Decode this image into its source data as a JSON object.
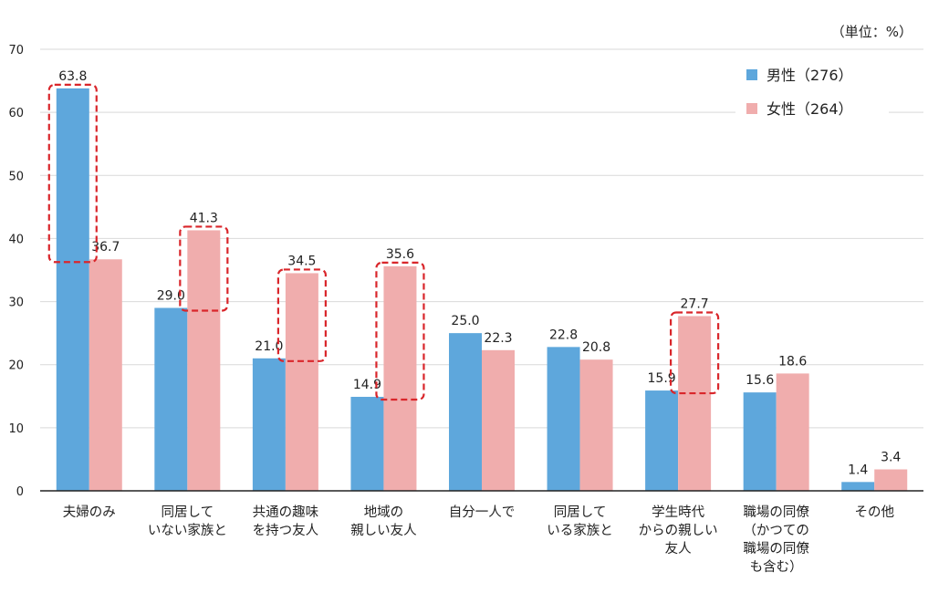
{
  "chart_data": {
    "type": "bar",
    "unit_label": "（単位：%）",
    "categories": [
      [
        "夫婦のみ"
      ],
      [
        "同居して",
        "いない家族と"
      ],
      [
        "共通の趣味",
        "を持つ友人"
      ],
      [
        "地域の",
        "親しい友人"
      ],
      [
        "自分一人で"
      ],
      [
        "同居して",
        "いる家族と"
      ],
      [
        "学生時代",
        "からの親しい",
        "友人"
      ],
      [
        "職場の同僚",
        "（かつての",
        "職場の同僚",
        "も含む）"
      ],
      [
        "その他"
      ]
    ],
    "series": [
      {
        "name": "男性（276）",
        "color": "#5ea7dc",
        "values": [
          63.8,
          29.0,
          21.0,
          14.9,
          25.0,
          22.8,
          15.9,
          15.6,
          1.4
        ],
        "labels": [
          "63.8",
          "29.0",
          "21.0",
          "14.9",
          "25.0",
          "22.8",
          "15.9",
          "15.6",
          "1.4"
        ]
      },
      {
        "name": "女性（264）",
        "color": "#f0adad",
        "values": [
          36.7,
          41.3,
          34.5,
          35.6,
          22.3,
          20.8,
          27.7,
          18.6,
          3.4
        ],
        "labels": [
          "36.7",
          "41.3",
          "34.5",
          "35.6",
          "22.3",
          "20.8",
          "27.7",
          "18.6",
          "3.4"
        ]
      }
    ],
    "ylim": [
      0,
      70
    ],
    "yticks": [
      "0",
      "10",
      "20",
      "30",
      "40",
      "50",
      "60",
      "70"
    ],
    "grid": true,
    "legend_position": "top-right",
    "highlight_color": "#d9262b",
    "highlights": [
      {
        "category": 0,
        "series": 0,
        "from": 36.7,
        "to": 63.8
      },
      {
        "category": 1,
        "series": 1,
        "from": 29.0,
        "to": 41.3
      },
      {
        "category": 2,
        "series": 1,
        "from": 21.0,
        "to": 34.5
      },
      {
        "category": 3,
        "series": 1,
        "from": 14.9,
        "to": 35.6
      },
      {
        "category": 6,
        "series": 1,
        "from": 15.9,
        "to": 27.7
      }
    ]
  }
}
